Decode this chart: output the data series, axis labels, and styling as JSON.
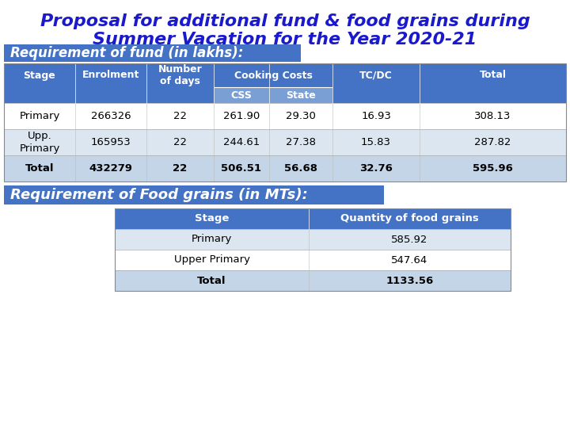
{
  "title_line1": "Proposal for additional fund & food grains during",
  "title_line2": "Summer Vacation for the Year 2020-21",
  "title_color": "#1a1acc",
  "title_fontsize": 16,
  "section1_label": "Requirement of fund (in lakhs):",
  "section2_label": "Requirement of Food grains (in MTs):",
  "section_label_color": "#ffffff",
  "section_bg_color": "#4472c4",
  "header_bg_color": "#4472c4",
  "header_text_color": "#ffffff",
  "subheader_bg_color": "#7a9fd4",
  "row_alt_color1": "#ffffff",
  "row_alt_color2": "#dce6f1",
  "total_row_color": "#c5d5e8",
  "table1_rows": [
    [
      "Primary",
      "266326",
      "22",
      "261.90",
      "29.30",
      "16.93",
      "308.13"
    ],
    [
      "Upp.\nPrimary",
      "165953",
      "22",
      "244.61",
      "27.38",
      "15.83",
      "287.82"
    ],
    [
      "Total",
      "432279",
      "22",
      "506.51",
      "56.68",
      "32.76",
      "595.96"
    ]
  ],
  "table2_headers": [
    "Stage",
    "Quantity of food grains"
  ],
  "table2_rows": [
    [
      "Primary",
      "585.92"
    ],
    [
      "Upper Primary",
      "547.64"
    ],
    [
      "Total",
      "1133.56"
    ]
  ],
  "bg_color": "#ffffff"
}
